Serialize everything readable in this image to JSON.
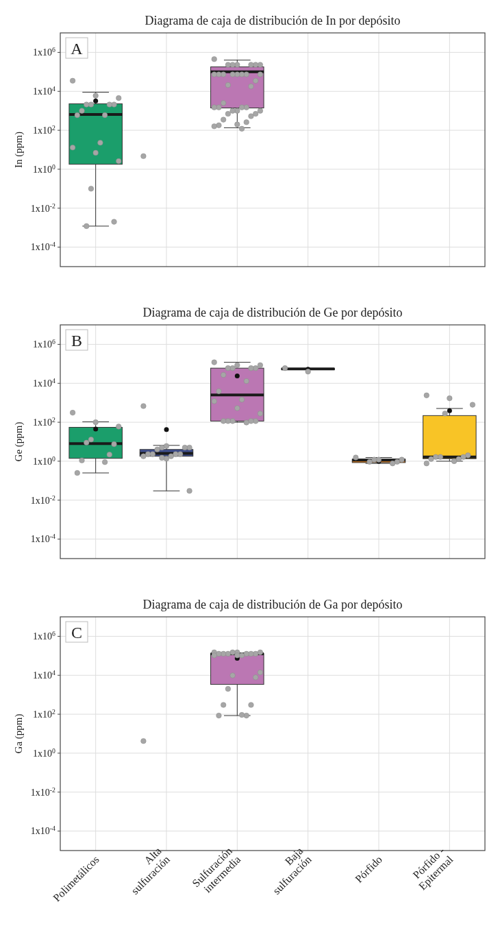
{
  "chart_data": [
    {
      "type": "box",
      "title": "Diagrama de caja de distribución de In por depósito",
      "ylabel": "In (ppm)",
      "annotations": [
        "A"
      ],
      "categories": [
        "Polimetálicos",
        "Alta sulfuración",
        "Sulfuración intermedia",
        "Baja sulfuración",
        "Pórfido",
        "Pórfido - Epitermal"
      ],
      "log": true,
      "grid": true,
      "tick_labels": "y",
      "ylim": [
        1e-05,
        10000000
      ],
      "yticks": [
        {
          "value": 0.0001,
          "label": "1x10$^{-4}$"
        },
        {
          "value": 0.01,
          "label": "1x10$^{-2}$"
        },
        {
          "value": 1,
          "label": "1x10$^{0}$"
        },
        {
          "value": 100,
          "label": "1x10$^{2}$"
        },
        {
          "value": 10000,
          "label": "1x10$^{4}$"
        },
        {
          "value": 1000000,
          "label": "1x10$^{6}$"
        }
      ],
      "series": [
        {
          "type": "box",
          "colors": [
            "#1b9e6b",
            null,
            "#bb77b3",
            null,
            null,
            null
          ],
          "boxes": [
            {
              "low": 0.0012,
              "q1": 1.8,
              "median": 650,
              "q3": 2300,
              "high": 9000,
              "mean": 3200
            },
            null,
            {
              "low": 135,
              "q1": 1400,
              "median": 100000,
              "q3": 180000,
              "high": 400000,
              "mean": 80000
            },
            null,
            null,
            null
          ]
        },
        {
          "type": "scatter",
          "color": "#a6a6a6",
          "marker": "circle",
          "x": [
            "Polimetálicos",
            "Polimetálicos",
            "Polimetálicos",
            "Polimetálicos",
            "Polimetálicos",
            "Polimetálicos",
            "Polimetálicos",
            "Polimetálicos",
            "Polimetálicos",
            "Polimetálicos",
            "Polimetálicos",
            "Polimetálicos",
            "Polimetálicos",
            "Polimetálicos",
            "Polimetálicos",
            "Polimetálicos",
            "Polimetálicos",
            "Alta sulfuración",
            "Sulfuración intermedia",
            "Sulfuración intermedia",
            "Sulfuración intermedia",
            "Sulfuración intermedia",
            "Sulfuración intermedia",
            "Sulfuración intermedia",
            "Sulfuración intermedia",
            "Sulfuración intermedia",
            "Sulfuración intermedia",
            "Sulfuración intermedia",
            "Sulfuración intermedia",
            "Sulfuración intermedia",
            "Sulfuración intermedia",
            "Sulfuración intermedia",
            "Sulfuración intermedia",
            "Sulfuración intermedia",
            "Sulfuración intermedia",
            "Sulfuración intermedia",
            "Sulfuración intermedia",
            "Sulfuración intermedia",
            "Sulfuración intermedia",
            "Sulfuración intermedia",
            "Sulfuración intermedia",
            "Sulfuración intermedia",
            "Sulfuración intermedia",
            "Sulfuración intermedia",
            "Sulfuración intermedia",
            "Sulfuración intermedia",
            "Sulfuración intermedia",
            "Sulfuración intermedia",
            "Sulfuración intermedia",
            "Sulfuración intermedia",
            "Sulfuración intermedia",
            "Sulfuración intermedia",
            "Sulfuración intermedia"
          ],
          "values": [
            35000,
            6000,
            4500,
            2100,
            2100,
            2100,
            2100,
            1000,
            600,
            600,
            23,
            13,
            7,
            2.6,
            0.1,
            0.002,
            0.0012,
            4.7,
            450000,
            230000,
            230000,
            230000,
            230000,
            230000,
            230000,
            74000,
            74000,
            74000,
            74000,
            74000,
            74000,
            74000,
            74000,
            35000,
            21000,
            18000,
            2500,
            1500,
            1500,
            1500,
            1500,
            1000,
            1000,
            1000,
            700,
            700,
            530,
            350,
            260,
            180,
            120,
            160,
            200
          ]
        }
      ]
    },
    {
      "type": "box",
      "title": "Diagrama de caja de distribución de Ge por depósito",
      "ylabel": "Ge (ppm)",
      "annotations": [
        "B"
      ],
      "categories": [
        "Polimetálicos",
        "Alta sulfuración",
        "Sulfuración intermedia",
        "Baja sulfuración",
        "Pórfido",
        "Pórfido - Epitermal"
      ],
      "log": true,
      "grid": true,
      "tick_labels": "y",
      "ylim": [
        1e-05,
        10000000
      ],
      "yticks": [
        {
          "value": 0.0001,
          "label": "1x10$^{-4}$"
        },
        {
          "value": 0.01,
          "label": "1x10$^{-2}$"
        },
        {
          "value": 1,
          "label": "1x10$^{0}$"
        },
        {
          "value": 100,
          "label": "1x10$^{2}$"
        },
        {
          "value": 10000,
          "label": "1x10$^{4}$"
        },
        {
          "value": 1000000,
          "label": "1x10$^{6}$"
        }
      ],
      "series": [
        {
          "type": "box",
          "colors": [
            "#1b9e6b",
            "#3f4f8f",
            "#bb77b3",
            "#666666",
            "#e0801f",
            "#f8c426"
          ],
          "boxes": [
            {
              "low": 0.25,
              "q1": 1.4,
              "median": 8,
              "q3": 55,
              "high": 105,
              "mean": 45
            },
            {
              "low": 0.03,
              "q1": 1.8,
              "median": 2.5,
              "q3": 4,
              "high": 6.5,
              "mean": 42
            },
            {
              "low": 100,
              "q1": 115,
              "median": 2500,
              "q3": 60000,
              "high": 120000,
              "mean": 24000
            },
            {
              "low": 50000,
              "q1": 50000,
              "median": 55000,
              "q3": 58000,
              "high": 58000,
              "mean": 53000
            },
            {
              "low": 0.77,
              "q1": 0.85,
              "median": 1.15,
              "q3": 1.26,
              "high": 1.55,
              "mean": 1
            },
            {
              "low": 1,
              "q1": 1.35,
              "median": 1.65,
              "q3": 220,
              "high": 510,
              "mean": 390
            }
          ]
        },
        {
          "type": "scatter",
          "color": "#a6a6a6",
          "marker": "circle",
          "x": [
            "Polimetálicos",
            "Polimetálicos",
            "Polimetálicos",
            "Polimetálicos",
            "Polimetálicos",
            "Polimetálicos",
            "Polimetálicos",
            "Polimetálicos",
            "Polimetálicos",
            "Polimetálicos",
            "Alta sulfuración",
            "Alta sulfuración",
            "Alta sulfuración",
            "Alta sulfuración",
            "Alta sulfuración",
            "Alta sulfuración",
            "Alta sulfuración",
            "Alta sulfuración",
            "Alta sulfuración",
            "Alta sulfuración",
            "Alta sulfuración",
            "Alta sulfuración",
            "Alta sulfuración",
            "Alta sulfuración",
            "Alta sulfuración",
            "Sulfuración intermedia",
            "Sulfuración intermedia",
            "Sulfuración intermedia",
            "Sulfuración intermedia",
            "Sulfuración intermedia",
            "Sulfuración intermedia",
            "Sulfuración intermedia",
            "Sulfuración intermedia",
            "Sulfuración intermedia",
            "Sulfuración intermedia",
            "Sulfuración intermedia",
            "Sulfuración intermedia",
            "Sulfuración intermedia",
            "Sulfuración intermedia",
            "Sulfuración intermedia",
            "Sulfuración intermedia",
            "Sulfuración intermedia",
            "Sulfuración intermedia",
            "Sulfuración intermedia",
            "Sulfuración intermedia",
            "Baja sulfuración",
            "Baja sulfuración",
            "Pórfido",
            "Pórfido",
            "Pórfido",
            "Pórfido",
            "Pórfido",
            "Pórfido",
            "Pórfido",
            "Pórfido - Epitermal",
            "Pórfido - Epitermal",
            "Pórfido - Epitermal",
            "Pórfido - Epitermal",
            "Pórfido - Epitermal",
            "Pórfido - Epitermal",
            "Pórfido - Epitermal",
            "Pórfido - Epitermal",
            "Pórfido - Epitermal",
            "Pórfido - Epitermal",
            "Pórfido - Epitermal",
            "Pórfido - Epitermal"
          ],
          "values": [
            310,
            100,
            60,
            13,
            7.5,
            9,
            2.2,
            1.1,
            0.9,
            0.25,
            680,
            6,
            5,
            5,
            5,
            4,
            2.3,
            2.3,
            2.3,
            2.3,
            1.8,
            1.8,
            1.35,
            0.03,
            1.5,
            120000,
            85000,
            85000,
            60000,
            60000,
            60000,
            60000,
            27000,
            13000,
            3900,
            1450,
            1200,
            530,
            280,
            115,
            115,
            115,
            115,
            115,
            97,
            60000,
            40000,
            1.55,
            1.2,
            1.2,
            1.2,
            0.93,
            0.93,
            0.77,
            2400,
            1700,
            790,
            280,
            2,
            1.65,
            1.65,
            1.65,
            1.3,
            1.3,
            1,
            0.77
          ]
        }
      ]
    },
    {
      "type": "box",
      "title": "Diagrama de caja de distribución de Ga por depósito",
      "ylabel": "Ga (ppm)",
      "annotations": [
        "C"
      ],
      "categories": [
        "Polimetálicos",
        "Alta sulfuración",
        "Sulfuración intermedia",
        "Baja sulfuración",
        "Pórfido",
        "Pórfido - Epitermal"
      ],
      "log": true,
      "grid": true,
      "ylim": [
        1e-05,
        10000000
      ],
      "yticks": [
        {
          "value": 0.0001,
          "label": "1x10$^{-4}$"
        },
        {
          "value": 0.01,
          "label": "1x10$^{-2}$"
        },
        {
          "value": 1,
          "label": "1x10$^{0}$"
        },
        {
          "value": 100,
          "label": "1x10$^{2}$"
        },
        {
          "value": 10000,
          "label": "1x10$^{4}$"
        },
        {
          "value": 1000000,
          "label": "1x10$^{6}$"
        }
      ],
      "series": [
        {
          "type": "box",
          "colors": [
            null,
            null,
            "#bb77b3",
            null,
            null,
            null
          ],
          "boxes": [
            null,
            null,
            {
              "low": 85,
              "q1": 3400,
              "median": 125000,
              "q3": 130000,
              "high": 140000,
              "mean": 74000
            },
            null,
            null,
            null
          ]
        },
        {
          "type": "scatter",
          "color": "#a6a6a6",
          "marker": "circle",
          "x": [
            "Alta sulfuración",
            "Sulfuración intermedia",
            "Sulfuración intermedia",
            "Sulfuración intermedia",
            "Sulfuración intermedia",
            "Sulfuración intermedia",
            "Sulfuración intermedia",
            "Sulfuración intermedia",
            "Sulfuración intermedia",
            "Sulfuración intermedia",
            "Sulfuración intermedia",
            "Sulfuración intermedia",
            "Sulfuración intermedia",
            "Sulfuración intermedia",
            "Sulfuración intermedia",
            "Sulfuración intermedia",
            "Sulfuración intermedia",
            "Sulfuración intermedia",
            "Sulfuración intermedia",
            "Sulfuración intermedia",
            "Sulfuración intermedia",
            "Sulfuración intermedia",
            "Sulfuración intermedia"
          ],
          "values": [
            4.2,
            150000,
            150000,
            150000,
            150000,
            127000,
            127000,
            127000,
            127000,
            127000,
            127000,
            105000,
            105000,
            105000,
            14000,
            9800,
            7800,
            2000,
            300,
            300,
            85,
            85,
            92
          ]
        }
      ]
    }
  ]
}
